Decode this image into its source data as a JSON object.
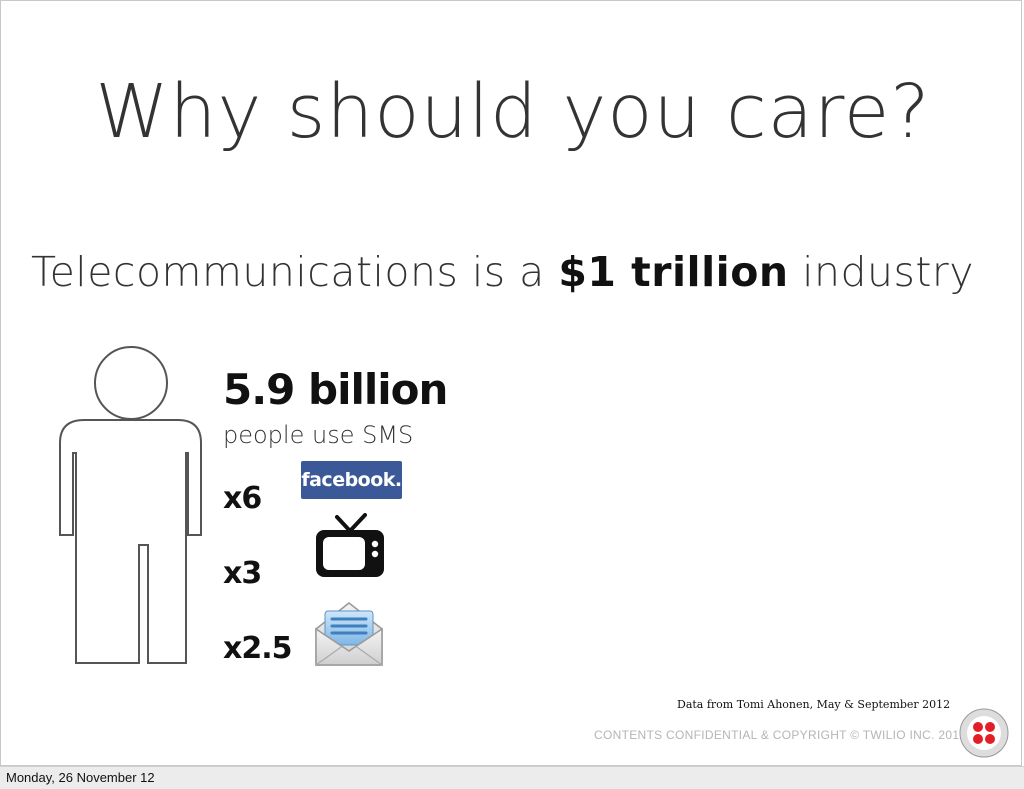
{
  "slide": {
    "title": "Why should you care?",
    "subtitle_prefix": "Telecommunications is a ",
    "subtitle_strong": "$1 trillion",
    "subtitle_suffix": " industry",
    "big_stat": "5.9 billion",
    "stat_caption": "people use SMS",
    "multipliers": [
      {
        "label": "x6",
        "icon": "facebook-logo",
        "logo_text": "facebook."
      },
      {
        "label": "x3",
        "icon": "tv-icon"
      },
      {
        "label": "x2.5",
        "icon": "mail-icon"
      }
    ],
    "source_note": "Data from Tomi Ahonen, May & September 2012",
    "confidential_note": "CONTENTS CONFIDENTIAL & COPYRIGHT © TWILIO INC. 2012",
    "brand_icon": "twilio-logo",
    "colors": {
      "facebook": "#3b5998",
      "twilio": "#e31e26"
    }
  },
  "footer": {
    "date": "Monday, 26 November 12"
  }
}
